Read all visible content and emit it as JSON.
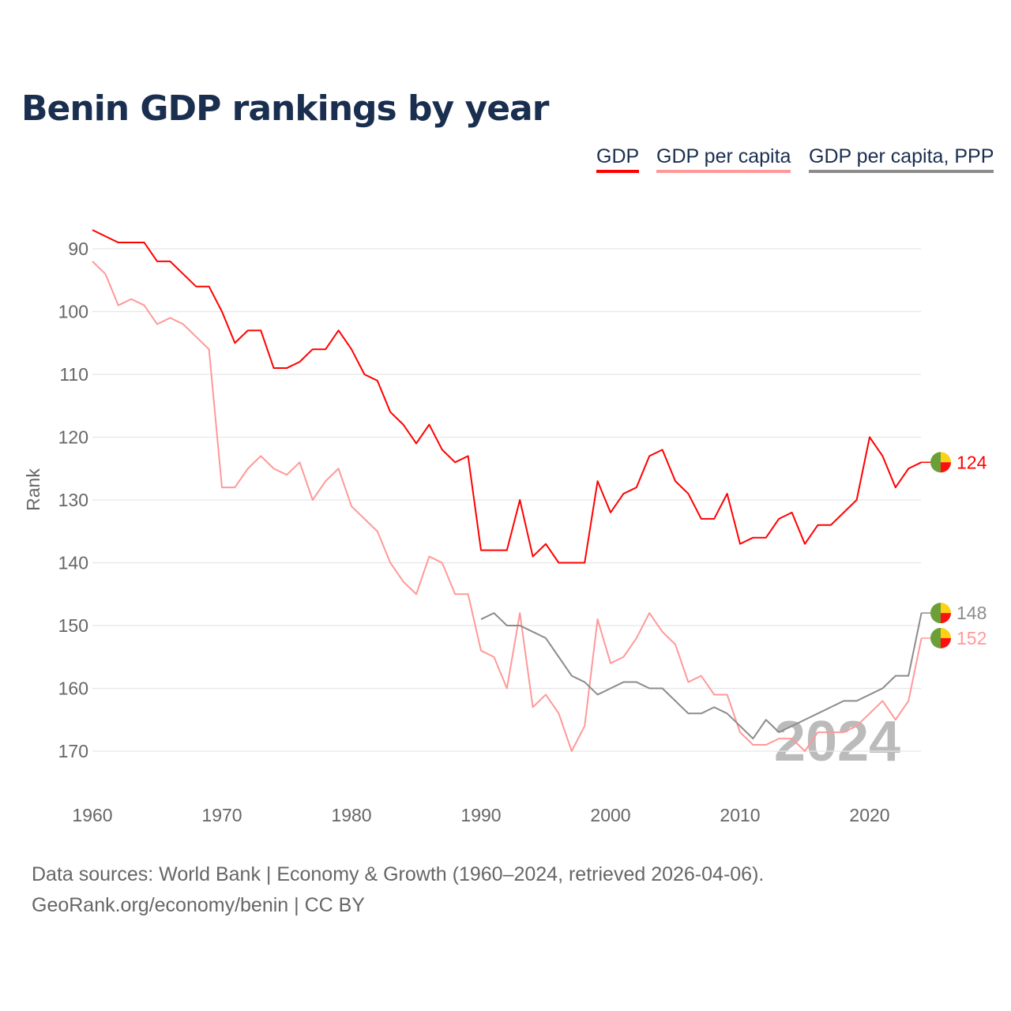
{
  "title": "Benin GDP rankings by year",
  "footer": {
    "line1": "Data sources: World Bank | Economy & Growth (1960–2024, retrieved 2026-04-06).",
    "line2": "GeoRank.org/economy/benin | CC BY"
  },
  "chart_data": {
    "type": "line",
    "title": "Benin GDP rankings by year",
    "xlabel": "",
    "ylabel": "Rank",
    "xlim": [
      1960,
      2024
    ],
    "ylim": [
      175,
      87
    ],
    "y_inverted": true,
    "xticks": [
      1960,
      1970,
      1980,
      1990,
      2000,
      2010,
      2020
    ],
    "yticks": [
      90,
      100,
      110,
      120,
      130,
      140,
      150,
      160,
      170
    ],
    "grid": true,
    "legend_position": "top-right",
    "watermark": "2024",
    "series": [
      {
        "name": "GDP",
        "color": "#ff0000",
        "start": 1960,
        "end_label": "124",
        "values": [
          87,
          88,
          89,
          89,
          89,
          92,
          92,
          94,
          96,
          96,
          100,
          105,
          103,
          103,
          109,
          109,
          108,
          106,
          106,
          103,
          106,
          110,
          111,
          116,
          118,
          121,
          118,
          122,
          124,
          123,
          138,
          138,
          138,
          130,
          139,
          137,
          140,
          140,
          140,
          127,
          132,
          129,
          128,
          123,
          122,
          127,
          129,
          133,
          133,
          129,
          137,
          136,
          136,
          133,
          132,
          137,
          134,
          134,
          132,
          130,
          120,
          123,
          128,
          125,
          124
        ]
      },
      {
        "name": "GDP per capita",
        "color": "#ff9999",
        "start": 1960,
        "end_label": "152",
        "values": [
          92,
          94,
          99,
          98,
          99,
          102,
          101,
          102,
          104,
          106,
          128,
          128,
          125,
          123,
          125,
          126,
          124,
          130,
          127,
          125,
          131,
          133,
          135,
          140,
          143,
          145,
          139,
          140,
          145,
          145,
          154,
          155,
          160,
          148,
          163,
          161,
          164,
          170,
          166,
          149,
          156,
          155,
          152,
          148,
          151,
          153,
          159,
          158,
          161,
          161,
          167,
          169,
          169,
          168,
          168,
          170,
          167,
          167,
          167,
          166,
          164,
          162,
          165,
          162,
          152
        ]
      },
      {
        "name": "GDP per capita, PPP",
        "color": "#8c8c8c",
        "start": 1990,
        "end_label": "148",
        "values": [
          149,
          148,
          150,
          150,
          151,
          152,
          155,
          158,
          159,
          161,
          160,
          159,
          159,
          160,
          160,
          162,
          164,
          164,
          163,
          164,
          166,
          168,
          165,
          167,
          166,
          165,
          164,
          163,
          162,
          162,
          161,
          160,
          158,
          158,
          148
        ]
      }
    ]
  }
}
